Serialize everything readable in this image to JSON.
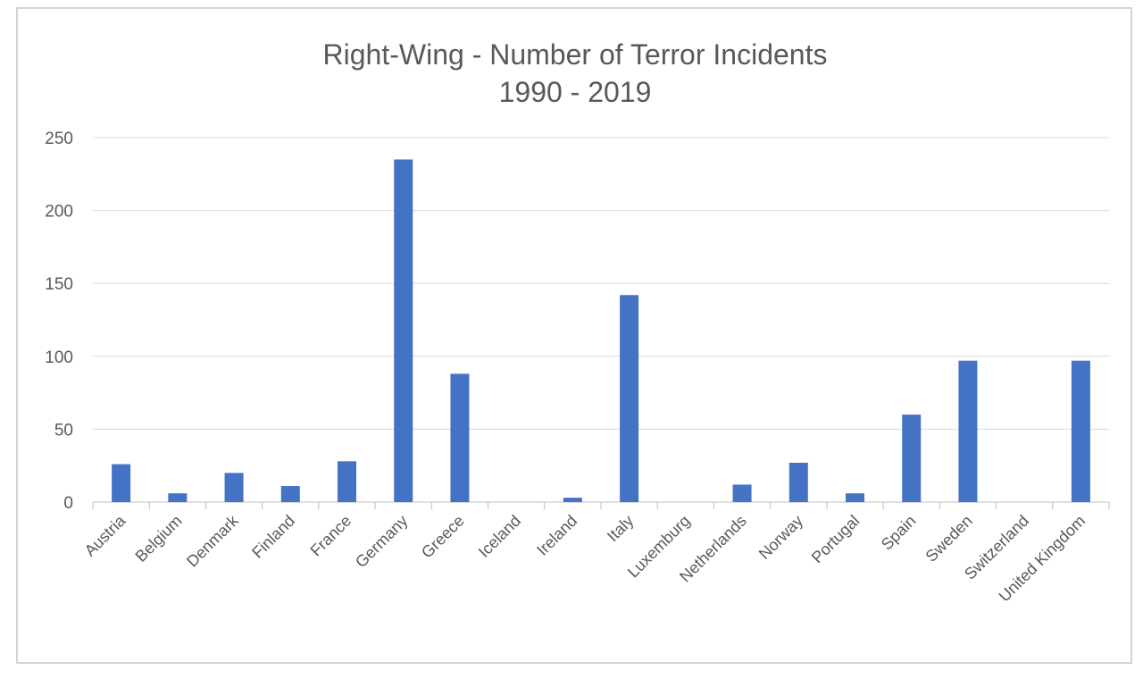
{
  "chart_data": {
    "type": "bar",
    "title": "Right-Wing - Number of Terror Incidents",
    "subtitle": "1990 - 2019",
    "xlabel": "",
    "ylabel": "",
    "ylim": [
      0,
      250
    ],
    "yticks": [
      0,
      50,
      100,
      150,
      200,
      250
    ],
    "grid": true,
    "legend": "none",
    "bar_color": "#4472C4",
    "categories": [
      "Austria",
      "Belgium",
      "Denmark",
      "Finland",
      "France",
      "Germany",
      "Greece",
      "Iceland",
      "Ireland",
      "Italy",
      "Luxemburg",
      "Netherlands",
      "Norway",
      "Portugal",
      "Spain",
      "Sweden",
      "Switzerland",
      "United Kingdom"
    ],
    "values": [
      26,
      6,
      20,
      11,
      28,
      235,
      88,
      0,
      3,
      142,
      0,
      12,
      27,
      6,
      60,
      97,
      0,
      97
    ]
  }
}
